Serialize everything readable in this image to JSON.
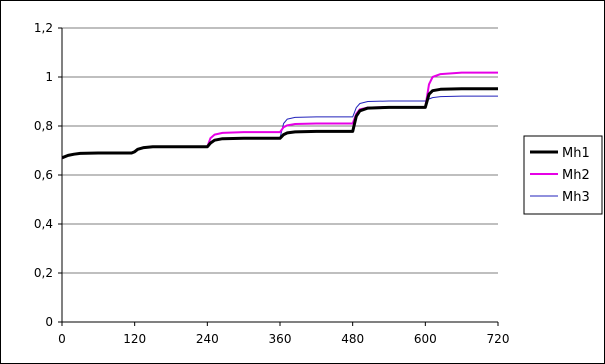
{
  "chart_data": {
    "type": "line",
    "title": "",
    "xlabel": "",
    "ylabel": "",
    "xlim": [
      0,
      720
    ],
    "ylim": [
      0,
      1.2
    ],
    "x_ticks": [
      0,
      120,
      240,
      360,
      480,
      600,
      720
    ],
    "x_tick_labels": [
      "0",
      "120",
      "240",
      "360",
      "480",
      "600",
      "720"
    ],
    "y_ticks": [
      0,
      0.2,
      0.4,
      0.6,
      0.8,
      1.0,
      1.2
    ],
    "y_tick_labels": [
      "0",
      "0,2",
      "0,4",
      "0,6",
      "0,8",
      "1",
      "1,2"
    ],
    "grid": "horizontal",
    "legend_position": "right",
    "series": [
      {
        "name": "Mh1",
        "color": "#000000",
        "x": [
          0,
          10,
          20,
          30,
          60,
          90,
          115,
          120,
          125,
          135,
          150,
          200,
          240,
          245,
          252,
          265,
          300,
          360,
          366,
          372,
          385,
          420,
          480,
          486,
          492,
          505,
          540,
          600,
          606,
          612,
          625,
          660,
          720
        ],
        "y": [
          0.67,
          0.68,
          0.685,
          0.688,
          0.69,
          0.69,
          0.69,
          0.695,
          0.705,
          0.712,
          0.715,
          0.715,
          0.715,
          0.73,
          0.742,
          0.748,
          0.75,
          0.75,
          0.765,
          0.772,
          0.776,
          0.778,
          0.778,
          0.84,
          0.862,
          0.873,
          0.876,
          0.876,
          0.93,
          0.944,
          0.95,
          0.952,
          0.952
        ]
      },
      {
        "name": "Mh2",
        "color": "#e600e6",
        "x": [
          0,
          10,
          20,
          30,
          60,
          90,
          115,
          120,
          125,
          135,
          150,
          200,
          240,
          245,
          252,
          265,
          300,
          360,
          366,
          372,
          385,
          420,
          480,
          486,
          492,
          505,
          540,
          600,
          606,
          612,
          625,
          660,
          720
        ],
        "y": [
          0.67,
          0.68,
          0.685,
          0.688,
          0.69,
          0.69,
          0.69,
          0.695,
          0.705,
          0.712,
          0.715,
          0.715,
          0.715,
          0.75,
          0.765,
          0.772,
          0.775,
          0.775,
          0.795,
          0.803,
          0.808,
          0.81,
          0.81,
          0.85,
          0.868,
          0.875,
          0.877,
          0.877,
          0.97,
          1.0,
          1.012,
          1.018,
          1.018
        ]
      },
      {
        "name": "Mh3",
        "color": "#2222bb",
        "x": [
          0,
          10,
          20,
          30,
          60,
          90,
          115,
          120,
          125,
          135,
          150,
          200,
          240,
          245,
          252,
          265,
          300,
          360,
          366,
          372,
          385,
          420,
          480,
          486,
          492,
          505,
          540,
          600,
          606,
          612,
          625,
          660,
          720
        ],
        "y": [
          0.672,
          0.682,
          0.687,
          0.69,
          0.692,
          0.692,
          0.692,
          0.698,
          0.708,
          0.714,
          0.717,
          0.717,
          0.717,
          0.735,
          0.745,
          0.75,
          0.752,
          0.752,
          0.81,
          0.828,
          0.835,
          0.837,
          0.837,
          0.875,
          0.892,
          0.9,
          0.902,
          0.902,
          0.91,
          0.916,
          0.92,
          0.922,
          0.922
        ]
      }
    ]
  },
  "colors": {
    "grid": "#000000",
    "plot_background": "#ffffff"
  }
}
